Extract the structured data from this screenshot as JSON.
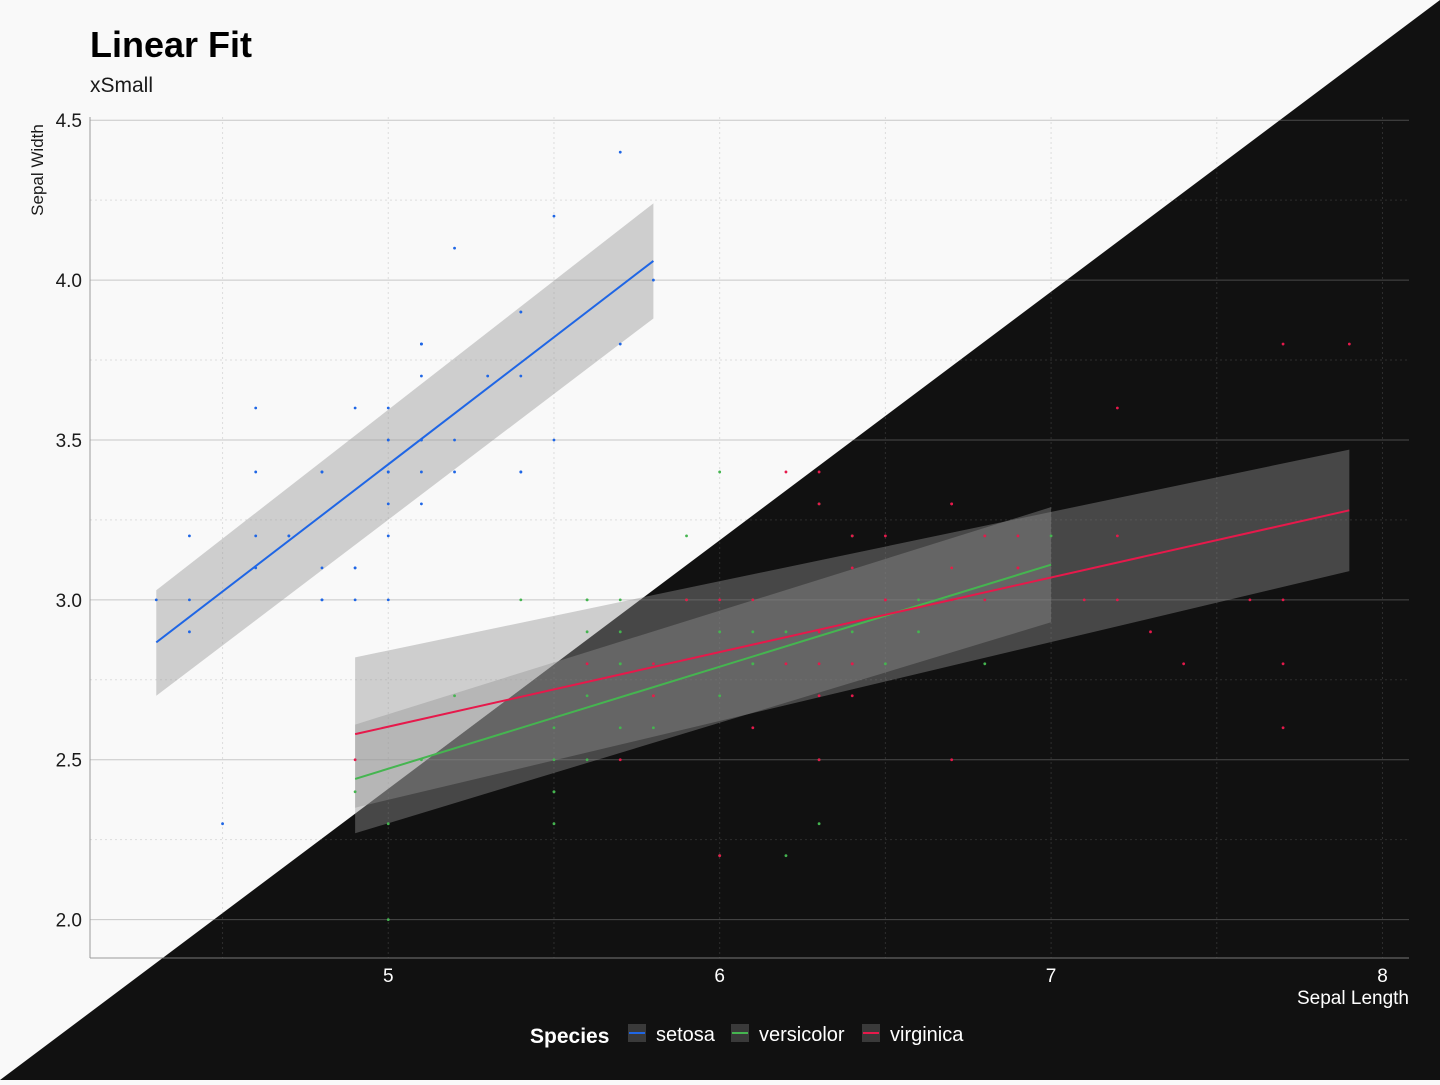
{
  "title": "Linear Fit",
  "subtitle": "xSmall",
  "legend_title": "Species",
  "colors": {
    "setosa": "#1f66e5",
    "versicolor": "#45b550",
    "virginica": "#e6194b",
    "light_background": "#f9f9f9",
    "dark_background": "#111111"
  },
  "chart_data": {
    "type": "scatter",
    "title": "Linear Fit",
    "subtitle": "xSmall",
    "xlabel": "Sepal Length",
    "ylabel": "Sepal Width",
    "xlim": [
      4.1,
      8.08
    ],
    "ylim": [
      1.88,
      4.51
    ],
    "x_ticks": [
      5,
      6,
      7,
      8
    ],
    "y_ticks": [
      2.0,
      2.5,
      3.0,
      3.5,
      4.0,
      4.5
    ],
    "x_tick_labels": [
      "5",
      "6",
      "7",
      "8"
    ],
    "y_tick_labels": [
      "2.0",
      "2.5",
      "3.0",
      "3.5",
      "4.0",
      "4.5"
    ],
    "grid": true,
    "legend_position": "bottom",
    "series": [
      {
        "name": "setosa",
        "color": "#1f66e5",
        "points": [
          [
            5.1,
            3.5
          ],
          [
            4.9,
            3.0
          ],
          [
            4.7,
            3.2
          ],
          [
            4.6,
            3.1
          ],
          [
            5.0,
            3.6
          ],
          [
            5.4,
            3.9
          ],
          [
            4.6,
            3.4
          ],
          [
            5.0,
            3.4
          ],
          [
            4.4,
            2.9
          ],
          [
            4.9,
            3.1
          ],
          [
            5.4,
            3.7
          ],
          [
            4.8,
            3.4
          ],
          [
            4.8,
            3.0
          ],
          [
            4.3,
            3.0
          ],
          [
            5.8,
            4.0
          ],
          [
            5.7,
            4.4
          ],
          [
            5.4,
            3.9
          ],
          [
            5.1,
            3.5
          ],
          [
            5.7,
            3.8
          ],
          [
            5.1,
            3.8
          ],
          [
            5.4,
            3.4
          ],
          [
            5.1,
            3.7
          ],
          [
            4.6,
            3.6
          ],
          [
            5.1,
            3.3
          ],
          [
            4.8,
            3.4
          ],
          [
            5.0,
            3.0
          ],
          [
            5.0,
            3.4
          ],
          [
            5.2,
            3.5
          ],
          [
            5.2,
            3.4
          ],
          [
            4.7,
            3.2
          ],
          [
            4.8,
            3.1
          ],
          [
            5.4,
            3.4
          ],
          [
            5.2,
            4.1
          ],
          [
            5.5,
            4.2
          ],
          [
            4.9,
            3.1
          ],
          [
            5.0,
            3.2
          ],
          [
            5.5,
            3.5
          ],
          [
            4.9,
            3.6
          ],
          [
            4.4,
            3.0
          ],
          [
            5.1,
            3.4
          ],
          [
            5.0,
            3.5
          ],
          [
            4.5,
            2.3
          ],
          [
            4.4,
            3.2
          ],
          [
            5.0,
            3.5
          ],
          [
            5.1,
            3.8
          ],
          [
            4.8,
            3.0
          ],
          [
            5.1,
            3.8
          ],
          [
            4.6,
            3.2
          ],
          [
            5.3,
            3.7
          ],
          [
            5.0,
            3.3
          ]
        ],
        "fit": {
          "x_start": 4.3,
          "x_end": 5.8,
          "y_start": 2.867,
          "y_end": 4.06,
          "ci_start": [
            2.7,
            3.03
          ],
          "ci_end": [
            3.88,
            4.24
          ]
        }
      },
      {
        "name": "versicolor",
        "color": "#45b550",
        "points": [
          [
            7.0,
            3.2
          ],
          [
            6.4,
            3.2
          ],
          [
            6.9,
            3.1
          ],
          [
            5.5,
            2.3
          ],
          [
            6.5,
            2.8
          ],
          [
            5.7,
            2.8
          ],
          [
            6.3,
            3.3
          ],
          [
            4.9,
            2.4
          ],
          [
            6.6,
            2.9
          ],
          [
            5.2,
            2.7
          ],
          [
            5.0,
            2.0
          ],
          [
            5.9,
            3.0
          ],
          [
            6.0,
            2.2
          ],
          [
            6.1,
            2.9
          ],
          [
            5.6,
            2.9
          ],
          [
            6.7,
            3.1
          ],
          [
            5.6,
            3.0
          ],
          [
            5.8,
            2.7
          ],
          [
            6.2,
            2.2
          ],
          [
            5.6,
            2.5
          ],
          [
            5.9,
            3.2
          ],
          [
            6.1,
            2.8
          ],
          [
            6.3,
            2.5
          ],
          [
            6.1,
            2.8
          ],
          [
            6.4,
            2.9
          ],
          [
            6.6,
            3.0
          ],
          [
            6.8,
            2.8
          ],
          [
            6.7,
            3.0
          ],
          [
            6.0,
            2.9
          ],
          [
            5.7,
            2.6
          ],
          [
            5.5,
            2.4
          ],
          [
            5.5,
            2.4
          ],
          [
            5.8,
            2.7
          ],
          [
            6.0,
            2.7
          ],
          [
            5.4,
            3.0
          ],
          [
            6.0,
            3.4
          ],
          [
            6.7,
            3.1
          ],
          [
            6.3,
            2.3
          ],
          [
            5.6,
            3.0
          ],
          [
            5.5,
            2.5
          ],
          [
            5.5,
            2.6
          ],
          [
            6.1,
            3.0
          ],
          [
            5.8,
            2.6
          ],
          [
            5.0,
            2.3
          ],
          [
            5.6,
            2.7
          ],
          [
            5.7,
            3.0
          ],
          [
            5.7,
            2.9
          ],
          [
            6.2,
            2.9
          ],
          [
            5.1,
            2.5
          ],
          [
            5.7,
            2.8
          ]
        ],
        "fit": {
          "x_start": 4.9,
          "x_end": 7.0,
          "y_start": 2.44,
          "y_end": 3.11,
          "ci_start": [
            2.27,
            2.61
          ],
          "ci_end": [
            2.93,
            3.29
          ]
        }
      },
      {
        "name": "virginica",
        "color": "#e6194b",
        "points": [
          [
            6.3,
            3.3
          ],
          [
            5.8,
            2.7
          ],
          [
            7.1,
            3.0
          ],
          [
            6.3,
            2.9
          ],
          [
            6.5,
            3.0
          ],
          [
            7.6,
            3.0
          ],
          [
            4.9,
            2.5
          ],
          [
            7.3,
            2.9
          ],
          [
            6.7,
            2.5
          ],
          [
            7.2,
            3.6
          ],
          [
            6.5,
            3.2
          ],
          [
            6.4,
            2.7
          ],
          [
            6.8,
            3.0
          ],
          [
            5.7,
            2.5
          ],
          [
            5.8,
            2.8
          ],
          [
            6.4,
            3.2
          ],
          [
            6.5,
            3.0
          ],
          [
            7.7,
            3.8
          ],
          [
            7.7,
            2.6
          ],
          [
            6.0,
            2.2
          ],
          [
            6.9,
            3.2
          ],
          [
            5.6,
            2.8
          ],
          [
            7.7,
            2.8
          ],
          [
            6.3,
            2.7
          ],
          [
            6.7,
            3.3
          ],
          [
            7.2,
            3.2
          ],
          [
            6.2,
            2.8
          ],
          [
            6.1,
            3.0
          ],
          [
            6.4,
            2.8
          ],
          [
            7.2,
            3.0
          ],
          [
            7.4,
            2.8
          ],
          [
            7.9,
            3.8
          ],
          [
            6.4,
            2.8
          ],
          [
            6.3,
            2.8
          ],
          [
            6.1,
            2.6
          ],
          [
            7.7,
            3.0
          ],
          [
            6.3,
            3.4
          ],
          [
            6.4,
            3.1
          ],
          [
            6.0,
            3.0
          ],
          [
            6.9,
            3.1
          ],
          [
            6.7,
            3.1
          ],
          [
            6.9,
            3.1
          ],
          [
            5.8,
            2.7
          ],
          [
            6.8,
            3.2
          ],
          [
            6.7,
            3.3
          ],
          [
            6.7,
            3.0
          ],
          [
            6.3,
            2.5
          ],
          [
            6.5,
            3.0
          ],
          [
            6.2,
            3.4
          ],
          [
            5.9,
            3.0
          ]
        ],
        "fit": {
          "x_start": 4.9,
          "x_end": 7.9,
          "y_start": 2.58,
          "y_end": 3.28,
          "ci_start": [
            2.35,
            2.82
          ],
          "ci_end": [
            3.09,
            3.47
          ]
        }
      }
    ]
  }
}
